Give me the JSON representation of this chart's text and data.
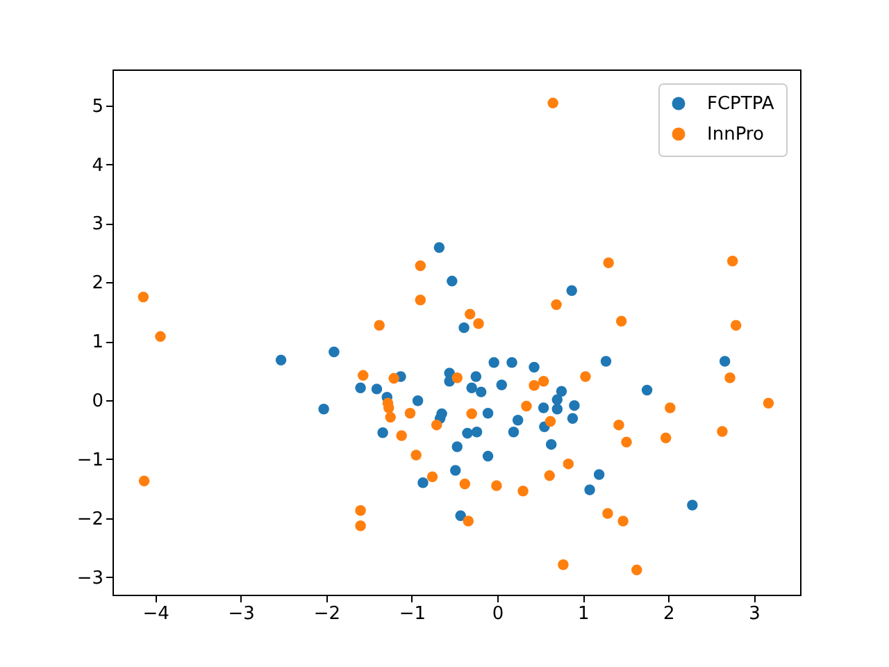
{
  "chart_data": {
    "type": "scatter",
    "xlim": [
      -4.5,
      3.54
    ],
    "ylim": [
      -3.3,
      5.61
    ],
    "xticks": [
      -4,
      -3,
      -2,
      -1,
      0,
      1,
      2,
      3
    ],
    "yticks": [
      -3,
      -2,
      -1,
      0,
      1,
      2,
      3,
      4,
      5
    ],
    "grid": false,
    "legend": "top right",
    "marker": "circle",
    "series": [
      {
        "name": "FCPTPA",
        "color": "#1f77b4",
        "x": [
          -2.53,
          -1.91,
          -2.03,
          -1.6,
          -1.41,
          -1.29,
          -1.13,
          -0.93,
          -1.34,
          -0.65,
          -0.67,
          -0.56,
          -0.56,
          -0.47,
          -0.49,
          -0.87,
          -0.43,
          -0.68,
          -0.53,
          -0.39,
          0.87,
          -0.04,
          0.17,
          0.43,
          -0.25,
          -0.3,
          -0.19,
          0.05,
          0.75,
          0.7,
          0.9,
          0.54,
          0.7,
          0.88,
          0.24,
          0.55,
          0.19,
          -0.35,
          -0.24,
          -0.11,
          -0.11,
          0.63,
          1.27,
          1.75,
          2.66,
          1.19,
          1.08,
          2.28
        ],
        "values": [
          0.68,
          0.82,
          -0.15,
          0.21,
          0.19,
          0.05,
          0.4,
          -0.01,
          -0.55,
          -0.23,
          -0.31,
          0.46,
          0.32,
          -0.79,
          -1.19,
          -1.4,
          -1.96,
          2.59,
          2.02,
          1.23,
          1.86,
          0.64,
          0.64,
          0.56,
          0.4,
          0.21,
          0.14,
          0.26,
          0.15,
          0.01,
          -0.09,
          -0.13,
          -0.15,
          -0.31,
          -0.34,
          -0.45,
          -0.54,
          -0.56,
          -0.54,
          -0.22,
          -0.95,
          -0.75,
          0.66,
          0.17,
          0.66,
          -1.26,
          -1.52,
          -1.78
        ]
      },
      {
        "name": "InnPro",
        "color": "#ff7f0e",
        "x": [
          -3.94,
          -4.13,
          -4.14,
          -1.57,
          -1.21,
          -1.28,
          -1.27,
          -1.25,
          -1.02,
          -0.71,
          -1.12,
          -0.95,
          -0.76,
          -1.6,
          -1.6,
          -1.38,
          -0.9,
          -0.9,
          0.65,
          1.3,
          2.75,
          0.69,
          1.45,
          2.79,
          -0.32,
          -0.22,
          -0.47,
          0.43,
          0.54,
          1.03,
          -0.3,
          0.34,
          0.62,
          1.42,
          1.51,
          2.02,
          1.97,
          2.72,
          3.17,
          2.63,
          -0.38,
          -0.01,
          0.3,
          0.83,
          0.61,
          1.29,
          1.47,
          -0.34,
          0.77,
          1.63
        ],
        "values": [
          1.08,
          -1.37,
          1.75,
          0.42,
          0.37,
          -0.05,
          -0.13,
          -0.29,
          -0.22,
          -0.42,
          -0.6,
          -0.93,
          -1.3,
          -1.87,
          -2.13,
          1.27,
          2.28,
          1.7,
          5.04,
          2.33,
          2.36,
          1.62,
          1.34,
          1.27,
          1.46,
          1.3,
          0.38,
          0.25,
          0.32,
          0.4,
          -0.23,
          -0.1,
          -0.36,
          -0.42,
          -0.71,
          -0.13,
          -0.64,
          0.38,
          -0.05,
          -0.53,
          -1.42,
          -1.45,
          -1.54,
          -1.08,
          -1.28,
          -1.92,
          -2.05,
          -2.05,
          -2.79,
          -2.88
        ]
      }
    ]
  }
}
